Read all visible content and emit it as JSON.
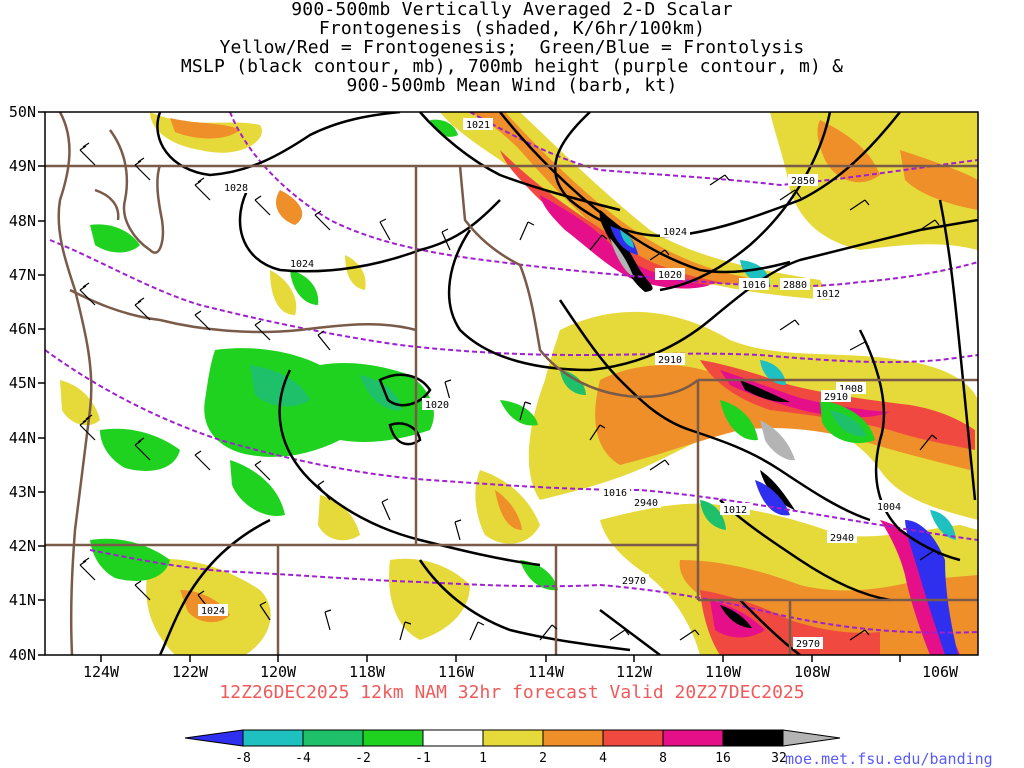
{
  "title": {
    "lines": [
      "900-500mb Vertically Averaged 2-D Scalar",
      "Frontogenesis (shaded, K/6hr/100km)",
      "Yellow/Red = Frontogenesis;  Green/Blue = Frontolysis",
      "MSLP (black contour, mb), 700mb height (purple contour, m) &",
      "900-500mb Mean Wind (barb, kt)"
    ]
  },
  "footer": "12Z26DEC2025 12km NAM 32hr forecast Valid 20Z27DEC2025",
  "credit": "moe.met.fsu.edu/banding",
  "map": {
    "lat_labels": [
      "50N",
      "49N",
      "48N",
      "47N",
      "46N",
      "45N",
      "44N",
      "43N",
      "42N",
      "41N",
      "40N"
    ],
    "lon_labels": [
      "124W",
      "122W",
      "120W",
      "118W",
      "116W",
      "114W",
      "112W",
      "110W",
      "108W",
      "106W"
    ],
    "mslp_labels": [
      "1021",
      "1028",
      "1024",
      "1024",
      "1020",
      "1016",
      "1012",
      "1020",
      "1016",
      "1012",
      "1008",
      "1004",
      "1024"
    ],
    "height_labels": [
      "2850",
      "2880",
      "2910",
      "2910",
      "2940",
      "2940",
      "2970",
      "2970"
    ]
  },
  "colorbar": {
    "labels": [
      "-8",
      "-4",
      "-2",
      "-1",
      "1",
      "2",
      "4",
      "8",
      "16",
      "32"
    ],
    "colors": [
      "#2f2ff0",
      "#1fc0c0",
      "#1fc06a",
      "#1fd21f",
      "#ffffff",
      "#e6d93a",
      "#ee8f2a",
      "#f04a40",
      "#e60f8a",
      "#000000",
      "#b4b4b4"
    ]
  },
  "colors": {
    "mslp": "#000000",
    "height": "#a020d0",
    "borders": "#7a5a48",
    "frontogenesis_weak": "#e6d93a",
    "frontogenesis_mod": "#ee8f2a",
    "frontogenesis_strong": "#f04a40",
    "frontogenesis_very_strong": "#e60f8a",
    "frontolysis_weak": "#1fd21f",
    "frontolysis_mod": "#1fc06a",
    "frontolysis_strong": "#2f2ff0"
  }
}
